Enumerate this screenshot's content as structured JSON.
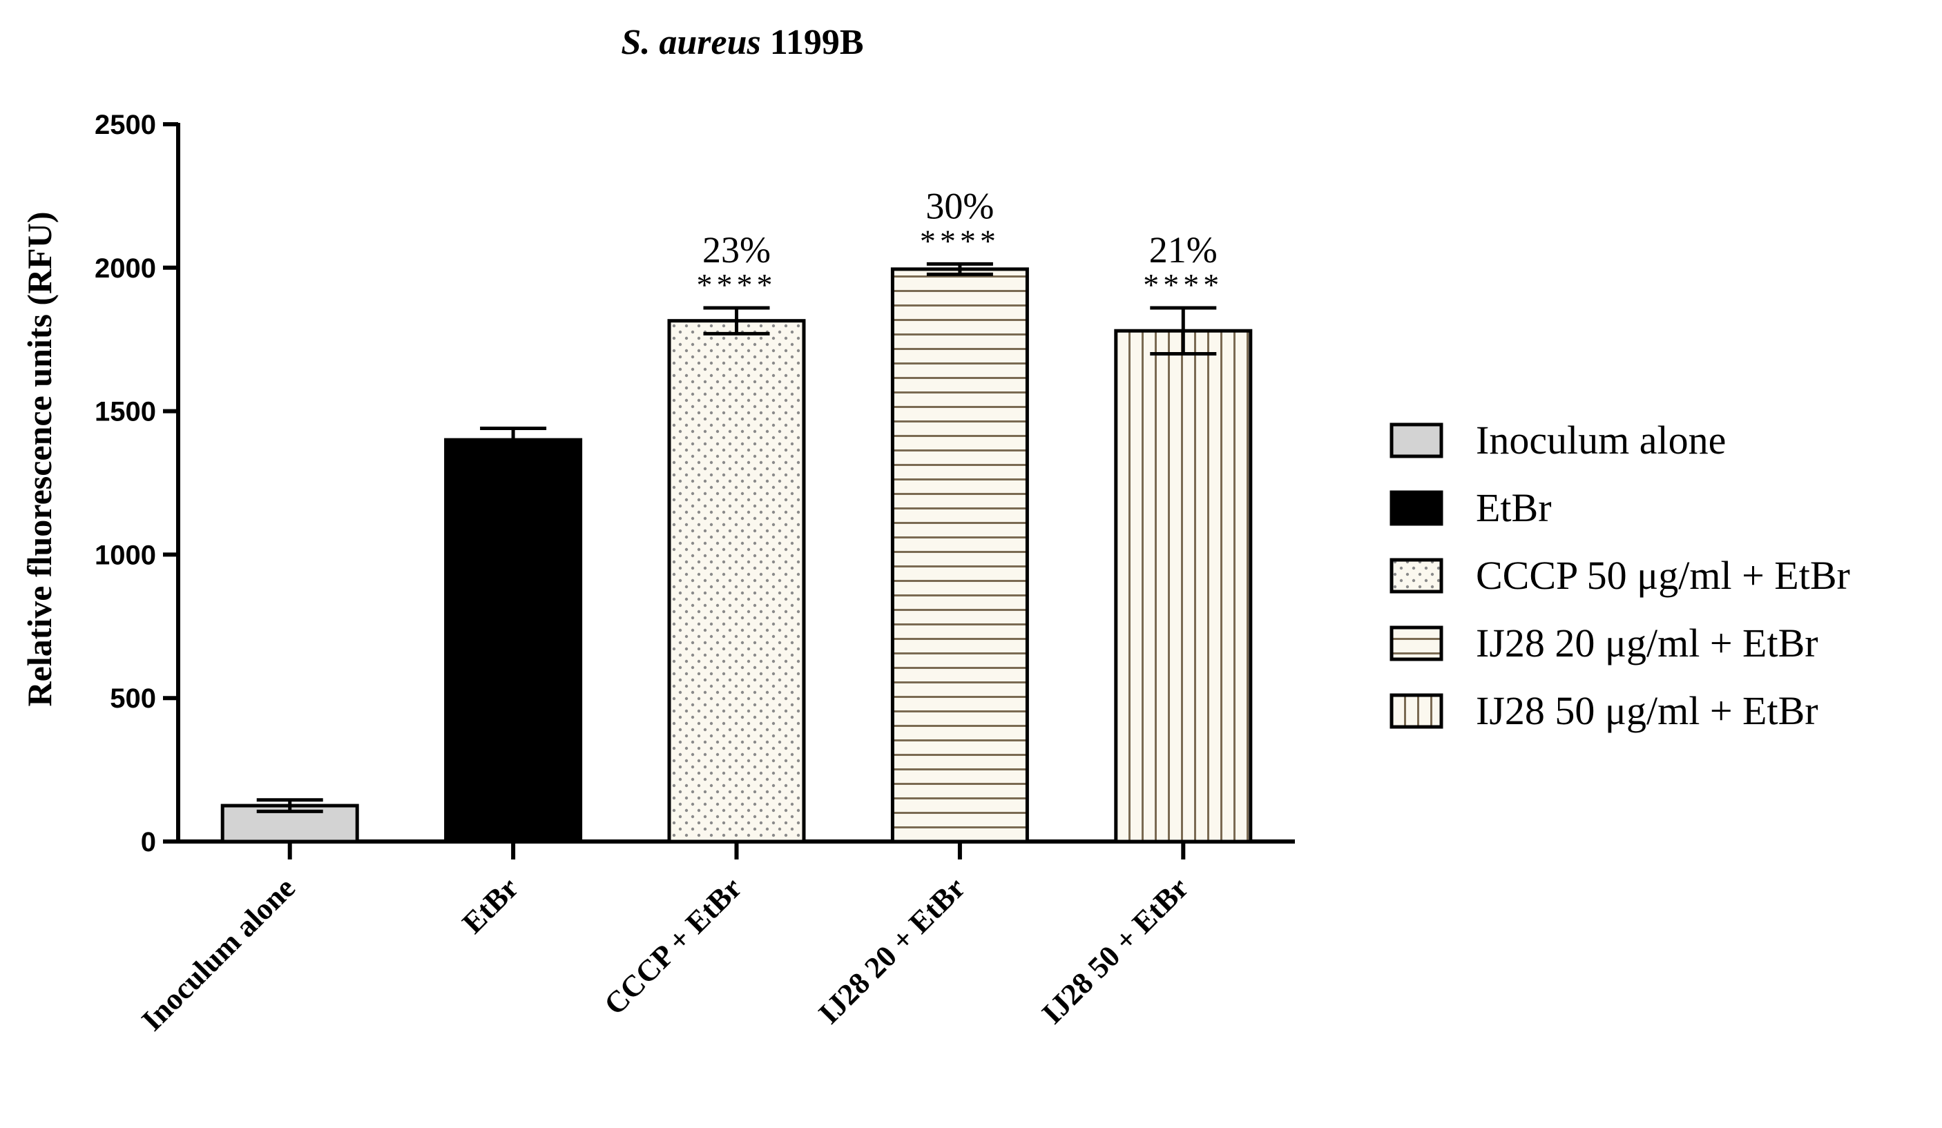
{
  "chart_data": {
    "type": "bar",
    "title_italic": "S. aureus",
    "title_rest": " 1199B",
    "ylabel": "Relative fluorescence units (RFU)",
    "xlabel": "",
    "ylim": [
      0,
      2500
    ],
    "yticks": [
      0,
      500,
      1000,
      1500,
      2000,
      2500
    ],
    "categories": [
      "Inoculum alone",
      "EtBr",
      "CCCP + EtBr",
      "IJ28 20 + EtBr",
      "IJ28 50 + EtBr"
    ],
    "values": [
      125,
      1400,
      1815,
      1995,
      1780
    ],
    "errors": [
      20,
      40,
      45,
      18,
      80
    ],
    "patterns": [
      "solid-gray",
      "solid-black",
      "dots",
      "horizontal-lines",
      "vertical-lines"
    ],
    "colors": {
      "inoculum": "#d3d3d3",
      "etbr": "#000000",
      "hatch_fill": "#fbf8ef",
      "hatch_line": "#7a6a52",
      "dot": "#8a8a8a"
    },
    "annotations": [
      {
        "index": 2,
        "percent": "23%",
        "stars": "****"
      },
      {
        "index": 3,
        "percent": "30%",
        "stars": "****"
      },
      {
        "index": 4,
        "percent": "21%",
        "stars": "****"
      }
    ],
    "legend_position": "right",
    "legend": [
      "Inoculum alone",
      "EtBr",
      "CCCP 50 μg/ml + EtBr",
      "IJ28 20 μg/ml + EtBr",
      "IJ28 50 μg/ml + EtBr"
    ],
    "grid": false
  }
}
